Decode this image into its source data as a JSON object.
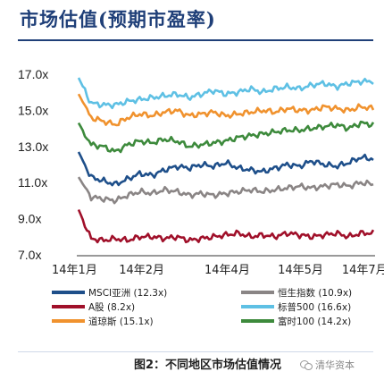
{
  "title": "市场估值(预期市盈率)",
  "caption": "图2：不同地区市场估值情况",
  "watermark": "清华资本",
  "icon": "wechat-icon",
  "chart_data": {
    "type": "line",
    "ylim": [
      7.0,
      17.0
    ],
    "yticks": [
      "17.0x",
      "15.0x",
      "13.0x",
      "11.0x",
      "9.0x",
      "7.0x"
    ],
    "ytick_values": [
      17,
      15,
      13,
      11,
      9,
      7
    ],
    "xticks": [
      "14年1月",
      "14年2月",
      "14年4月",
      "14年5月",
      "14年7月"
    ],
    "xtick_positions": [
      0,
      0.22,
      0.5,
      0.74,
      0.95
    ],
    "grid": false,
    "legend_position": "bottom",
    "series": [
      {
        "name": "MSCI亚洲 (12.3x)",
        "color": "#1e4f8a",
        "values": [
          12.7,
          11.3,
          11.1,
          10.9,
          11.2,
          11.5,
          11.4,
          11.7,
          11.9,
          11.8,
          12.0,
          11.9,
          12.1,
          11.8,
          11.7,
          11.6,
          11.8,
          12.0,
          11.9,
          12.2,
          12.0,
          11.9,
          12.1,
          12.4,
          12.3
        ]
      },
      {
        "name": "A股 (8.2x)",
        "color": "#a0102a",
        "values": [
          9.5,
          7.9,
          7.8,
          7.9,
          7.8,
          8.0,
          8.0,
          7.9,
          8.0,
          7.8,
          7.9,
          8.0,
          8.1,
          8.2,
          8.0,
          8.1,
          8.0,
          8.2,
          8.1,
          8.0,
          8.1,
          8.2,
          8.0,
          8.2,
          8.2
        ]
      },
      {
        "name": "道琼斯 (15.1x)",
        "color": "#f0922e",
        "values": [
          15.9,
          14.6,
          14.4,
          14.2,
          14.6,
          14.8,
          14.7,
          14.9,
          15.0,
          14.7,
          14.8,
          14.9,
          14.7,
          14.8,
          14.9,
          15.0,
          14.9,
          15.1,
          15.0,
          15.0,
          15.2,
          15.1,
          15.0,
          15.2,
          15.1
        ]
      },
      {
        "name": "恒生指数 (10.9x)",
        "color": "#8a8585",
        "values": [
          11.3,
          10.2,
          10.1,
          10.0,
          10.3,
          10.5,
          10.4,
          10.6,
          10.5,
          10.3,
          10.4,
          10.3,
          10.4,
          10.5,
          10.6,
          10.5,
          10.6,
          10.7,
          10.8,
          10.7,
          10.8,
          10.9,
          10.8,
          11.0,
          10.9
        ]
      },
      {
        "name": "标普500 (16.6x)",
        "color": "#5ec0e4",
        "values": [
          16.8,
          15.4,
          15.3,
          15.3,
          15.5,
          15.6,
          15.7,
          15.8,
          15.9,
          15.7,
          15.9,
          16.1,
          15.9,
          16.0,
          16.2,
          16.0,
          16.2,
          16.3,
          16.2,
          16.4,
          16.5,
          16.3,
          16.5,
          16.6,
          16.6
        ]
      },
      {
        "name": "富时100 (14.2x)",
        "color": "#3d8a3c",
        "values": [
          14.3,
          13.1,
          13.0,
          12.7,
          13.1,
          13.3,
          13.2,
          13.4,
          13.3,
          13.0,
          13.1,
          13.2,
          13.3,
          13.5,
          13.6,
          13.7,
          13.8,
          13.9,
          13.9,
          14.0,
          14.1,
          14.2,
          14.0,
          14.3,
          14.2
        ]
      }
    ]
  }
}
